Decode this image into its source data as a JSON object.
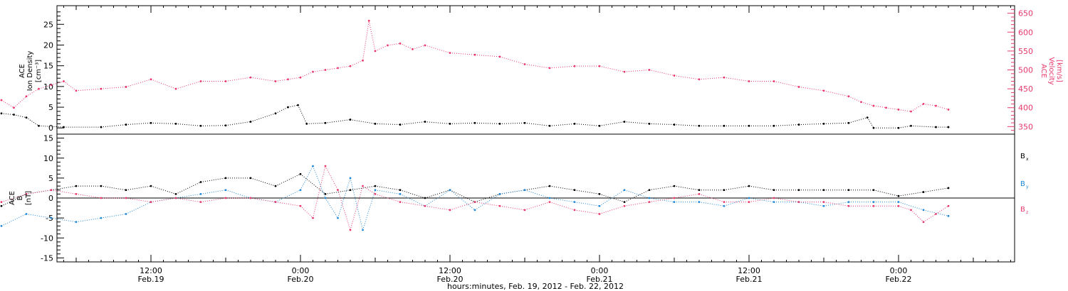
{
  "colors": {
    "black": "#000000",
    "pink": "#e8386b",
    "blue": "#1f87d6"
  },
  "x_axis": {
    "title": "hours:minutes, Feb. 19, 2012 - Feb. 22, 2012",
    "time_range_hours": [
      0,
      96
    ],
    "major_ticks": [
      {
        "time": "12:00",
        "date": "Feb.19",
        "t_hours": 12
      },
      {
        "time": "0:00",
        "date": "Feb.20",
        "t_hours": 24
      },
      {
        "time": "12:00",
        "date": "Feb.20",
        "t_hours": 36
      },
      {
        "time": "0:00",
        "date": "Feb.21",
        "t_hours": 48
      },
      {
        "time": "12:00",
        "date": "Feb.21",
        "t_hours": 60
      },
      {
        "time": "0:00",
        "date": "Feb.22",
        "t_hours": 72
      }
    ]
  },
  "chart_data": [
    {
      "type": "scatter",
      "panel": "top",
      "ylabel_left": [
        "ACE",
        "Ion Density",
        "[cm⁻³]"
      ],
      "ylabel_right": [
        "ACE",
        "Velocity",
        "[km/s]"
      ],
      "ylim_left": [
        -1.5,
        29.5
      ],
      "ylim_right": [
        330,
        670
      ],
      "yticks_left": [
        0,
        5,
        10,
        15,
        20,
        25
      ],
      "yticks_right": [
        350,
        400,
        450,
        500,
        550,
        600,
        650
      ],
      "series": [
        {
          "axis": "left",
          "color": "#000000",
          "t": [
            0,
            1,
            2,
            3,
            5,
            8,
            10,
            12,
            14,
            16,
            18,
            20,
            22,
            23,
            23.8,
            24.5,
            26,
            28,
            30,
            32,
            34,
            36,
            38,
            40,
            42,
            44,
            46,
            48,
            50,
            52,
            54,
            56,
            58,
            60,
            62,
            64,
            66,
            68,
            69.5,
            70,
            72,
            73,
            75,
            76
          ],
          "y": [
            3.5,
            3.2,
            2.5,
            0.5,
            0.2,
            0.2,
            0.8,
            1.2,
            1.0,
            0.5,
            0.6,
            1.5,
            3.5,
            5.0,
            5.5,
            1.0,
            1.2,
            2.0,
            1.0,
            0.8,
            1.5,
            1.0,
            1.2,
            1.0,
            1.2,
            0.5,
            1.0,
            0.5,
            1.5,
            1.0,
            0.8,
            0.5,
            0.5,
            0.5,
            0.5,
            0.8,
            1.0,
            1.2,
            2.5,
            0,
            0,
            0.5,
            0.2,
            0.2
          ]
        },
        {
          "axis": "right",
          "color": "#e8386b",
          "t": [
            0,
            1,
            2,
            3,
            4,
            5,
            6,
            8,
            10,
            12,
            14,
            16,
            18,
            20,
            22,
            23,
            24,
            25,
            26,
            27,
            28,
            29,
            29.5,
            30,
            31,
            32,
            33,
            34,
            36,
            38,
            40,
            42,
            44,
            46,
            48,
            50,
            52,
            54,
            56,
            58,
            60,
            62,
            64,
            66,
            68,
            69,
            70,
            71,
            72,
            73,
            74,
            75,
            76
          ],
          "y": [
            420,
            400,
            430,
            450,
            460,
            470,
            445,
            450,
            455,
            475,
            450,
            470,
            470,
            480,
            470,
            475,
            480,
            495,
            500,
            505,
            510,
            525,
            630,
            550,
            565,
            570,
            555,
            565,
            545,
            540,
            535,
            515,
            505,
            510,
            510,
            495,
            500,
            485,
            475,
            480,
            470,
            470,
            455,
            445,
            430,
            415,
            405,
            400,
            395,
            390,
            410,
            405,
            395
          ]
        }
      ]
    },
    {
      "type": "scatter",
      "panel": "bottom",
      "ylabel_left": [
        "ACE",
        "B",
        "[nT]"
      ],
      "ylim": [
        -16,
        16
      ],
      "yticks": [
        -15,
        -10,
        -5,
        0,
        5,
        10,
        15
      ],
      "legend": [
        {
          "label": "B",
          "sub": "x",
          "color": "#000000"
        },
        {
          "label": "B",
          "sub": "y",
          "color": "#1f87d6"
        },
        {
          "label": "B",
          "sub": "z",
          "color": "#e8386b"
        }
      ],
      "series": [
        {
          "name": "Bx",
          "color": "#000000",
          "t": [
            0,
            2,
            4,
            6,
            8,
            10,
            12,
            14,
            16,
            18,
            20,
            22,
            24,
            26,
            28,
            30,
            32,
            34,
            36,
            38,
            40,
            42,
            44,
            46,
            48,
            50,
            52,
            54,
            56,
            58,
            60,
            62,
            64,
            66,
            68,
            70,
            72,
            74,
            76
          ],
          "y": [
            -2,
            1,
            2,
            3,
            3,
            2,
            3,
            1,
            4,
            5,
            5,
            3,
            6,
            1,
            2,
            3,
            2,
            0,
            2,
            -1,
            1,
            2,
            3,
            2,
            1,
            -1,
            2,
            3,
            2,
            2,
            3,
            2,
            2,
            2,
            2,
            2,
            0.5,
            1.5,
            2.5
          ]
        },
        {
          "name": "By",
          "color": "#1f87d6",
          "t": [
            0,
            2,
            4,
            6,
            8,
            10,
            12,
            14,
            16,
            18,
            20,
            22,
            24,
            25,
            26,
            27,
            28,
            29,
            30,
            32,
            34,
            36,
            38,
            40,
            42,
            44,
            46,
            48,
            50,
            52,
            54,
            56,
            58,
            60,
            62,
            64,
            66,
            68,
            70,
            72,
            74,
            76
          ],
          "y": [
            -7,
            -4,
            -5,
            -6,
            -5,
            -4,
            -1,
            0,
            1,
            2,
            0,
            -1,
            2,
            8,
            0,
            -5,
            5,
            -8,
            2,
            1,
            -2,
            2,
            -3,
            1,
            2,
            0,
            -1,
            -2,
            2,
            0,
            -1,
            -1,
            -2,
            0,
            -1,
            -1,
            -2,
            -1,
            -1,
            -1,
            -3,
            -4.5
          ]
        },
        {
          "name": "Bz",
          "color": "#e8386b",
          "t": [
            0,
            2,
            4,
            6,
            8,
            10,
            12,
            14,
            16,
            18,
            20,
            22,
            24,
            25,
            26,
            27,
            28,
            29,
            30,
            32,
            34,
            36,
            38,
            40,
            42,
            44,
            46,
            48,
            50,
            52,
            54,
            56,
            58,
            60,
            62,
            64,
            66,
            68,
            70,
            72,
            73,
            74,
            75,
            76
          ],
          "y": [
            -1,
            1,
            2,
            1,
            0,
            0,
            -1,
            0,
            -1,
            0,
            0,
            -1,
            -2,
            -5,
            8,
            2,
            -8,
            3,
            1,
            -1,
            -2,
            -3,
            -1,
            -2,
            -3,
            -1,
            -3,
            -4,
            -2,
            -1,
            0,
            1,
            -1,
            -1,
            0,
            -1,
            -1,
            -2,
            -2,
            -2,
            -3,
            -6,
            -4,
            -2
          ]
        }
      ]
    }
  ]
}
